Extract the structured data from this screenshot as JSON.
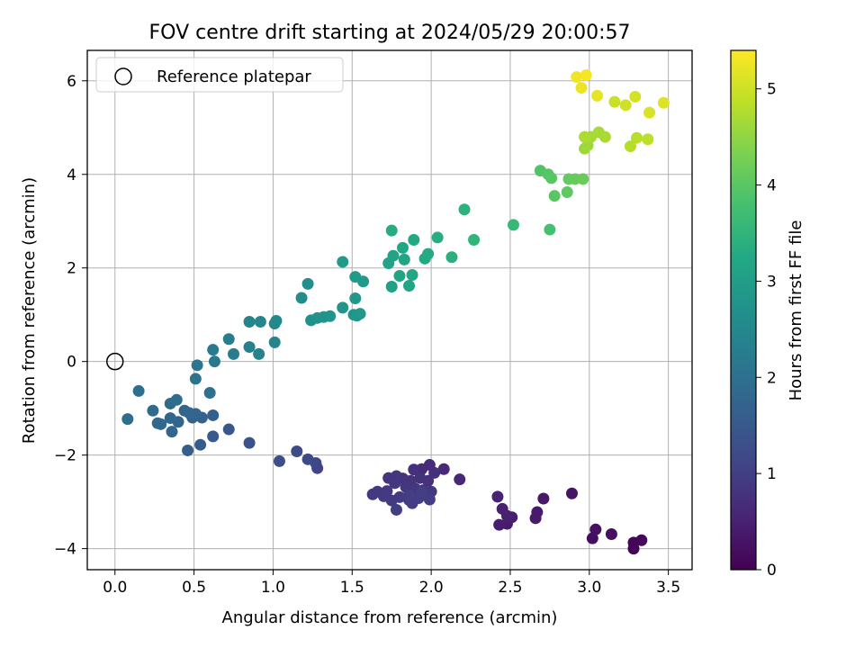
{
  "chart_data": {
    "type": "scatter",
    "title": "FOV centre drift starting at 2024/05/29 20:00:57",
    "xlabel": "Angular distance from reference (arcmin)",
    "ylabel": "Rotation from reference (arcmin)",
    "xlim": [
      -0.175,
      3.65
    ],
    "ylim": [
      -4.45,
      6.65
    ],
    "xticks": [
      0.0,
      0.5,
      1.0,
      1.5,
      2.0,
      2.5,
      3.0,
      3.5
    ],
    "xtick_labels": [
      "0.0",
      "0.5",
      "1.0",
      "1.5",
      "2.0",
      "2.5",
      "3.0",
      "3.5"
    ],
    "yticks": [
      -4,
      -2,
      0,
      2,
      4,
      6
    ],
    "ytick_labels": [
      "−4",
      "−2",
      "0",
      "2",
      "4",
      "6"
    ],
    "grid": true,
    "legend": {
      "position": "upper-left",
      "entries": [
        "Reference platepar"
      ]
    },
    "reference_point": {
      "x": 0.0,
      "y": 0.0,
      "label": "Reference platepar"
    },
    "colorbar": {
      "label": "Hours from first FF file",
      "range": [
        0,
        5.4
      ],
      "ticks": [
        0,
        1,
        2,
        3,
        4,
        5
      ],
      "tick_labels": [
        "0",
        "1",
        "2",
        "3",
        "4",
        "5"
      ],
      "colormap": "viridis"
    },
    "points": [
      [
        3.28,
        -4.0,
        0.05
      ],
      [
        3.28,
        -3.87,
        0.08
      ],
      [
        3.33,
        -3.82,
        0.1
      ],
      [
        3.02,
        -3.78,
        0.18
      ],
      [
        3.14,
        -3.69,
        0.22
      ],
      [
        3.04,
        -3.59,
        0.25
      ],
      [
        2.89,
        -2.82,
        0.3
      ],
      [
        2.71,
        -2.93,
        0.35
      ],
      [
        2.66,
        -3.35,
        0.38
      ],
      [
        2.67,
        -3.22,
        0.4
      ],
      [
        2.48,
        -3.47,
        0.42
      ],
      [
        2.43,
        -3.49,
        0.44
      ],
      [
        2.51,
        -3.33,
        0.46
      ],
      [
        2.48,
        -3.3,
        0.48
      ],
      [
        2.45,
        -3.15,
        0.5
      ],
      [
        2.42,
        -2.89,
        0.52
      ],
      [
        2.18,
        -2.52,
        0.6
      ],
      [
        2.08,
        -2.3,
        0.65
      ],
      [
        1.99,
        -2.21,
        0.68
      ],
      [
        1.94,
        -2.3,
        0.7
      ],
      [
        1.89,
        -2.31,
        0.72
      ],
      [
        2.02,
        -2.38,
        0.74
      ],
      [
        1.98,
        -2.55,
        0.76
      ],
      [
        1.93,
        -2.49,
        0.78
      ],
      [
        1.87,
        -2.55,
        0.8
      ],
      [
        1.82,
        -2.5,
        0.8
      ],
      [
        1.78,
        -2.45,
        0.82
      ],
      [
        1.73,
        -2.49,
        0.82
      ],
      [
        1.77,
        -2.6,
        0.84
      ],
      [
        1.84,
        -2.68,
        0.84
      ],
      [
        1.9,
        -2.72,
        0.86
      ],
      [
        1.95,
        -2.75,
        0.86
      ],
      [
        2.0,
        -2.78,
        0.88
      ],
      [
        1.72,
        -2.77,
        0.88
      ],
      [
        1.66,
        -2.78,
        0.9
      ],
      [
        1.63,
        -2.84,
        0.9
      ],
      [
        1.7,
        -2.88,
        0.92
      ],
      [
        1.75,
        -2.97,
        0.92
      ],
      [
        1.8,
        -2.9,
        0.94
      ],
      [
        1.86,
        -2.96,
        0.94
      ],
      [
        1.92,
        -2.92,
        0.96
      ],
      [
        1.99,
        -2.95,
        0.96
      ],
      [
        1.78,
        -3.17,
        0.98
      ],
      [
        1.88,
        -3.03,
        0.98
      ],
      [
        1.94,
        -2.79,
        1.0
      ],
      [
        1.86,
        -2.85,
        1.0
      ],
      [
        1.28,
        -2.28,
        1.1
      ],
      [
        1.27,
        -2.17,
        1.15
      ],
      [
        1.22,
        -2.09,
        1.2
      ],
      [
        1.15,
        -1.92,
        1.25
      ],
      [
        1.04,
        -2.13,
        1.3
      ],
      [
        0.85,
        -1.74,
        1.4
      ],
      [
        0.72,
        -1.45,
        1.45
      ],
      [
        0.62,
        -1.6,
        1.5
      ],
      [
        0.54,
        -1.78,
        1.55
      ],
      [
        0.46,
        -1.9,
        1.6
      ],
      [
        0.62,
        -1.15,
        1.65
      ],
      [
        0.55,
        -1.2,
        1.65
      ],
      [
        0.49,
        -1.2,
        1.7
      ],
      [
        0.44,
        -1.05,
        1.7
      ],
      [
        0.51,
        -1.12,
        1.72
      ],
      [
        0.47,
        -1.1,
        1.74
      ],
      [
        0.4,
        -1.29,
        1.76
      ],
      [
        0.36,
        -1.5,
        1.78
      ],
      [
        0.35,
        -1.21,
        1.8
      ],
      [
        0.29,
        -1.34,
        1.82
      ],
      [
        0.27,
        -1.32,
        1.84
      ],
      [
        0.24,
        -1.05,
        1.86
      ],
      [
        0.35,
        -0.9,
        1.88
      ],
      [
        0.39,
        -0.82,
        1.9
      ],
      [
        0.08,
        -1.23,
        1.92
      ],
      [
        0.15,
        -0.63,
        1.95
      ],
      [
        0.6,
        -0.67,
        1.98
      ],
      [
        0.51,
        -0.37,
        2.05
      ],
      [
        0.52,
        -0.08,
        2.1
      ],
      [
        0.63,
        0.0,
        2.15
      ],
      [
        0.62,
        0.25,
        2.2
      ],
      [
        0.75,
        0.16,
        2.25
      ],
      [
        0.72,
        0.48,
        2.3
      ],
      [
        0.85,
        0.31,
        2.35
      ],
      [
        0.91,
        0.16,
        2.38
      ],
      [
        1.01,
        0.41,
        2.42
      ],
      [
        0.85,
        0.85,
        2.45
      ],
      [
        0.92,
        0.85,
        2.48
      ],
      [
        1.01,
        0.81,
        2.5
      ],
      [
        1.02,
        0.87,
        2.52
      ],
      [
        1.18,
        1.36,
        2.6
      ],
      [
        1.22,
        1.66,
        2.65
      ],
      [
        1.24,
        0.88,
        2.7
      ],
      [
        1.28,
        0.93,
        2.72
      ],
      [
        1.32,
        0.95,
        2.74
      ],
      [
        1.36,
        0.97,
        2.76
      ],
      [
        1.44,
        1.15,
        2.8
      ],
      [
        1.51,
        1.0,
        2.82
      ],
      [
        1.53,
        0.98,
        2.84
      ],
      [
        1.55,
        1.02,
        2.86
      ],
      [
        1.52,
        1.35,
        2.88
      ],
      [
        1.52,
        1.81,
        2.9
      ],
      [
        1.57,
        1.71,
        2.92
      ],
      [
        1.44,
        2.13,
        2.95
      ],
      [
        1.75,
        1.6,
        3.05
      ],
      [
        1.73,
        2.1,
        3.1
      ],
      [
        1.76,
        2.26,
        3.12
      ],
      [
        1.8,
        1.83,
        3.14
      ],
      [
        1.83,
        2.18,
        3.16
      ],
      [
        1.86,
        1.62,
        3.18
      ],
      [
        1.88,
        1.85,
        3.2
      ],
      [
        1.82,
        2.43,
        3.22
      ],
      [
        1.89,
        2.6,
        3.24
      ],
      [
        1.96,
        2.2,
        3.26
      ],
      [
        1.98,
        2.3,
        3.28
      ],
      [
        1.75,
        2.8,
        3.3
      ],
      [
        2.04,
        2.65,
        3.35
      ],
      [
        2.13,
        2.23,
        3.4
      ],
      [
        2.21,
        3.25,
        3.45
      ],
      [
        2.27,
        2.6,
        3.5
      ],
      [
        2.52,
        2.92,
        3.6
      ],
      [
        2.75,
        2.82,
        3.8
      ],
      [
        2.69,
        4.08,
        3.9
      ],
      [
        2.74,
        4.0,
        3.95
      ],
      [
        2.76,
        3.92,
        3.98
      ],
      [
        2.78,
        3.54,
        4.0
      ],
      [
        2.86,
        3.62,
        4.05
      ],
      [
        2.87,
        3.9,
        4.1
      ],
      [
        2.91,
        3.9,
        4.12
      ],
      [
        2.96,
        3.9,
        4.15
      ],
      [
        2.97,
        4.55,
        4.6
      ],
      [
        2.99,
        4.62,
        4.62
      ],
      [
        3.01,
        4.8,
        4.65
      ],
      [
        3.06,
        4.9,
        4.68
      ],
      [
        3.1,
        4.8,
        4.7
      ],
      [
        2.97,
        4.8,
        4.72
      ],
      [
        3.26,
        4.6,
        4.8
      ],
      [
        3.3,
        4.78,
        4.82
      ],
      [
        3.37,
        4.75,
        4.85
      ],
      [
        3.16,
        5.55,
        4.95
      ],
      [
        3.23,
        5.48,
        5.0
      ],
      [
        3.29,
        5.66,
        5.05
      ],
      [
        3.38,
        5.32,
        5.1
      ],
      [
        3.47,
        5.53,
        5.15
      ],
      [
        3.05,
        5.68,
        5.2
      ],
      [
        2.95,
        5.85,
        5.25
      ],
      [
        2.92,
        6.08,
        5.3
      ],
      [
        2.98,
        6.12,
        5.35
      ]
    ]
  }
}
